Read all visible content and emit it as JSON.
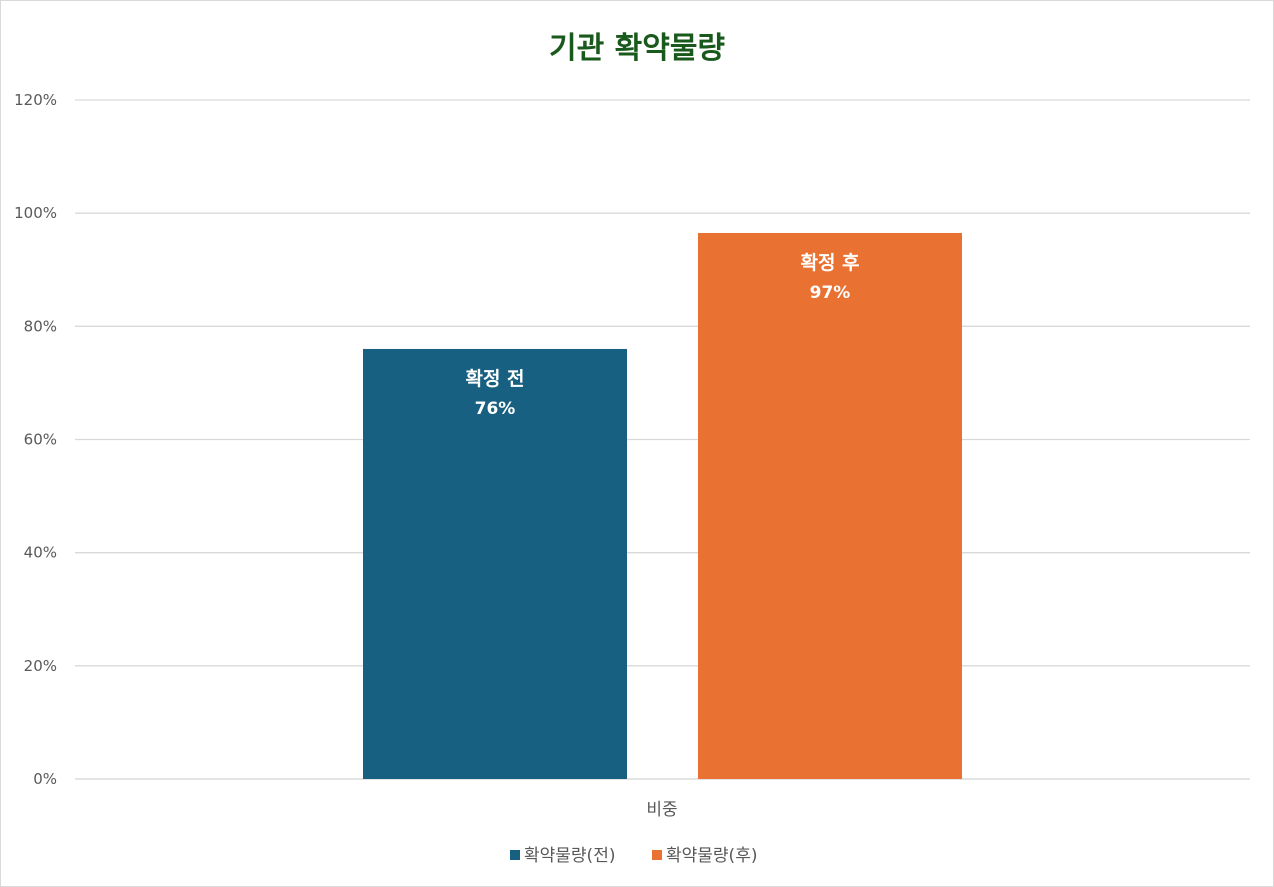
{
  "chart_data": {
    "type": "bar",
    "title": "기관 확약물량",
    "categories": [
      "비중"
    ],
    "series": [
      {
        "name": "확약물량(전)",
        "values": [
          76
        ],
        "data_label_name": "확정 전",
        "data_label_value": "76%",
        "color": "#186082"
      },
      {
        "name": "확약물량(후)",
        "values": [
          96.5
        ],
        "data_label_name": "확정 후",
        "data_label_value": "97%",
        "color": "#E97132"
      }
    ],
    "ylim": [
      0,
      120
    ],
    "yticks": [
      "0%",
      "20%",
      "40%",
      "60%",
      "80%",
      "100%",
      "120%"
    ],
    "ytick_values": [
      0,
      20,
      40,
      60,
      80,
      100,
      120
    ],
    "grid": true,
    "legend": "bottom",
    "title_color": "#19591B",
    "grid_color": "#D9D9D9"
  }
}
